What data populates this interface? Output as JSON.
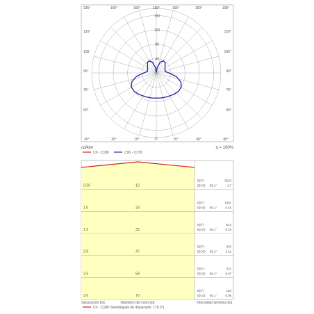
{
  "chart_data": [
    {
      "type": "polar",
      "unit_label": "cd/klm",
      "efficiency_label": "η = 100%",
      "radial_tick_labels": [
        "40",
        "80",
        "120",
        "160"
      ],
      "radial_max": 180,
      "angle_labels_top": [
        "135°",
        "150°",
        "165°",
        "180°",
        "165°",
        "150°",
        "135°"
      ],
      "angle_labels_left": [
        "120°",
        "105°",
        "90°",
        "75°",
        "60°"
      ],
      "angle_labels_right": [
        "120°",
        "105°",
        "90°",
        "75°",
        "60°"
      ],
      "angle_labels_bottom": [
        "45°",
        "30°",
        "15°",
        "0°",
        "15°",
        "30°",
        "45°"
      ],
      "series": [
        {
          "name": "C0 - C180",
          "color": "#cc2222",
          "points": []
        },
        {
          "name": "C90 - C270",
          "color": "#2a2aa8",
          "points": [
            [
              0,
              70
            ],
            [
              10,
              71
            ],
            [
              20,
              72
            ],
            [
              30,
              74
            ],
            [
              40,
              77
            ],
            [
              50,
              80
            ],
            [
              60,
              80
            ],
            [
              70,
              73
            ],
            [
              80,
              56
            ],
            [
              90,
              35
            ],
            [
              100,
              25
            ],
            [
              110,
              26
            ],
            [
              120,
              28
            ],
            [
              130,
              32
            ],
            [
              140,
              38
            ],
            [
              150,
              39
            ],
            [
              160,
              32
            ],
            [
              170,
              16
            ],
            [
              180,
              2
            ]
          ]
        }
      ]
    },
    {
      "type": "cone-table",
      "angle_label": "C0 - C180 (Semiángulo de dispersión: 170.3°)",
      "xlabel_separation": "Separación [m]",
      "xlabel_diameter": "Diámetro del cono [m]",
      "xlabel_intensity": "Intensidad lumínica [lx]",
      "rows": [
        {
          "distance": "0.50",
          "diameter": "12",
          "e0_label": "E(0°)",
          "e0": "5523",
          "ec_label": "E(C0)",
          "ec_angle": "85.1°",
          "ec": "1.7"
        },
        {
          "distance": "1.0",
          "diameter": "23",
          "e0_label": "E(0°)",
          "e0": "1381",
          "ec_label": "E(C0)",
          "ec_angle": "85.1°",
          "ec": "0.45"
        },
        {
          "distance": "1.5",
          "diameter": "35",
          "e0_label": "E(0°)",
          "e0": "614",
          "ec_label": "E(C0)",
          "ec_angle": "85.1°",
          "ec": "0.19"
        },
        {
          "distance": "2.0",
          "diameter": "47",
          "e0_label": "E(0°)",
          "e0": "345",
          "ec_label": "E(C0)",
          "ec_angle": "85.1°",
          "ec": "0.11"
        },
        {
          "distance": "2.5",
          "diameter": "58",
          "e0_label": "E(0°)",
          "e0": "221",
          "ec_label": "E(C0)",
          "ec_angle": "85.1°",
          "ec": "0.07"
        },
        {
          "distance": "3.0",
          "diameter": "70",
          "e0_label": "E(0°)",
          "e0": "153",
          "ec_label": "E(C0)",
          "ec_angle": "85.1°",
          "ec": "0.05"
        }
      ]
    }
  ],
  "colors": {
    "grid": "#aaaaaa",
    "cone_fill": "#ffffc0",
    "cone_band_line": "#b7b7b7",
    "c0_color": "#cc2222",
    "c90_color": "#2a2aa8"
  }
}
